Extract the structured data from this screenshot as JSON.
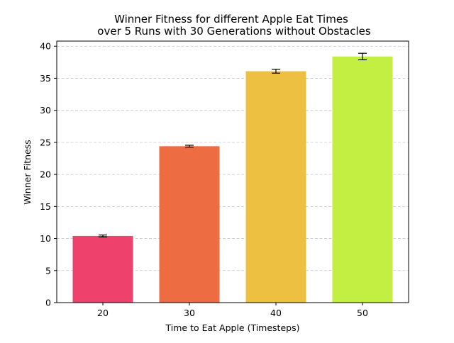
{
  "chart_data": {
    "type": "bar",
    "title": [
      "Winner Fitness for different Apple Eat Times",
      "over 5 Runs with 30 Generations without Obstacles"
    ],
    "xlabel": "Time to Eat Apple (Timesteps)",
    "ylabel": "Winner Fitness",
    "categories": [
      "20",
      "30",
      "40",
      "50"
    ],
    "values": [
      10.4,
      24.4,
      36.1,
      38.4
    ],
    "errors": [
      0.15,
      0.15,
      0.3,
      0.5
    ],
    "colors": [
      "#EE426D",
      "#EE6C42",
      "#EEC042",
      "#C3EE42"
    ],
    "ylim": [
      0,
      40.8
    ],
    "yticks": [
      0,
      5,
      10,
      15,
      20,
      25,
      30,
      35,
      40
    ],
    "grid": {
      "axis": "y",
      "style": "dashed",
      "color": "#c8c8c8"
    },
    "errorbar_color": "#000000"
  }
}
